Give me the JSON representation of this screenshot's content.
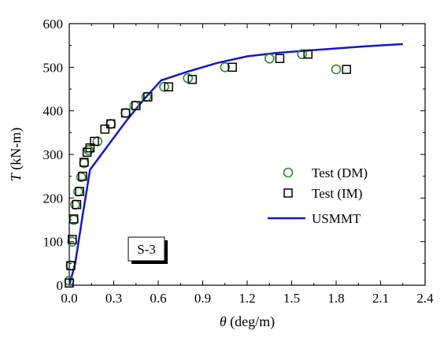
{
  "chart_data": {
    "type": "scatter",
    "xlabel_symbol": "θ",
    "xlabel_unit": " (deg/m)",
    "ylabel_symbol": "T",
    "ylabel_unit": " (kN-m)",
    "xlim": [
      0.0,
      2.4
    ],
    "ylim": [
      0,
      600
    ],
    "xticks": [
      0.0,
      0.3,
      0.6,
      0.9,
      1.2,
      1.5,
      1.8,
      2.1,
      2.4
    ],
    "xtick_labels": [
      "0.0",
      "0.3",
      "0.6",
      "0.9",
      "1.2",
      "1.5",
      "1.8",
      "2.1",
      "2.4"
    ],
    "yticks": [
      0,
      100,
      200,
      300,
      400,
      500,
      600
    ],
    "ytick_labels": [
      "0",
      "100",
      "200",
      "300",
      "400",
      "500",
      "600"
    ],
    "grid": false,
    "legend_position": "center-right",
    "annotation": "S-3",
    "series": [
      {
        "name": "Test (DM)",
        "kind": "scatter",
        "marker": "circle",
        "color": "#2a8a2a",
        "x": [
          0.0,
          0.01,
          0.02,
          0.03,
          0.04,
          0.06,
          0.08,
          0.1,
          0.13,
          0.19,
          0.28,
          0.38,
          0.44,
          0.52,
          0.64,
          0.8,
          1.05,
          1.35,
          1.57,
          1.8
        ],
        "y": [
          10,
          45,
          100,
          150,
          185,
          215,
          248,
          280,
          310,
          330,
          370,
          395,
          412,
          432,
          455,
          475,
          500,
          520,
          530,
          495
        ]
      },
      {
        "name": "Test (IM)",
        "kind": "scatter",
        "marker": "square",
        "color": "#000000",
        "x": [
          0.0,
          0.01,
          0.02,
          0.03,
          0.05,
          0.07,
          0.09,
          0.1,
          0.12,
          0.14,
          0.17,
          0.24,
          0.28,
          0.38,
          0.45,
          0.53,
          0.67,
          0.83,
          1.1,
          1.42,
          1.61,
          1.87
        ],
        "y": [
          5,
          45,
          105,
          152,
          185,
          215,
          250,
          282,
          305,
          315,
          330,
          358,
          370,
          395,
          412,
          432,
          455,
          472,
          500,
          520,
          530,
          495
        ]
      },
      {
        "name": "USMMT",
        "kind": "line",
        "color": "#1515cc",
        "x": [
          0.0,
          0.04,
          0.09,
          0.14,
          0.26,
          0.38,
          0.5,
          0.62,
          0.8,
          1.0,
          1.2,
          1.4,
          1.6,
          1.8,
          2.0,
          2.25
        ],
        "y": [
          0,
          50,
          160,
          265,
          320,
          375,
          425,
          470,
          490,
          510,
          525,
          533,
          538,
          543,
          548,
          553
        ]
      }
    ]
  }
}
